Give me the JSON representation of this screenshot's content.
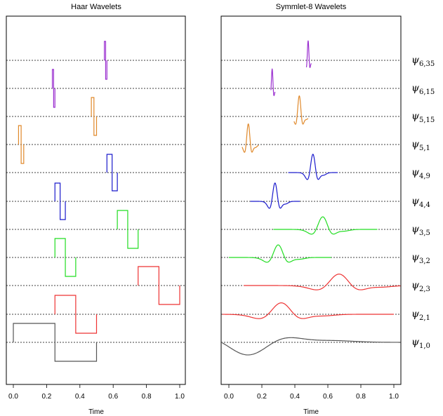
{
  "chart_data": [
    {
      "type": "line",
      "title": "Haar Wavelets",
      "xlabel": "Time",
      "xlim": [
        0.0,
        1.0
      ],
      "x_ticks": [
        "0.0",
        "0.2",
        "0.4",
        "0.6",
        "0.8",
        "1.0"
      ],
      "series": [
        {
          "level": [
            6,
            35
          ],
          "color": "#9b30d0",
          "support": [
            0.5469,
            0.5625
          ]
        },
        {
          "level": [
            6,
            15
          ],
          "color": "#9b30d0",
          "support": [
            0.2344,
            0.25
          ]
        },
        {
          "level": [
            5,
            15
          ],
          "color": "#e0892b",
          "support": [
            0.4688,
            0.5
          ]
        },
        {
          "level": [
            5,
            1
          ],
          "color": "#e0892b",
          "support": [
            0.0313,
            0.0625
          ]
        },
        {
          "level": [
            4,
            9
          ],
          "color": "#1a1acc",
          "support": [
            0.5625,
            0.625
          ]
        },
        {
          "level": [
            4,
            4
          ],
          "color": "#1a1acc",
          "support": [
            0.25,
            0.3125
          ]
        },
        {
          "level": [
            3,
            5
          ],
          "color": "#22dd22",
          "support": [
            0.625,
            0.75
          ]
        },
        {
          "level": [
            3,
            2
          ],
          "color": "#22dd22",
          "support": [
            0.25,
            0.375
          ]
        },
        {
          "level": [
            2,
            3
          ],
          "color": "#ee3333",
          "support": [
            0.75,
            1.0
          ]
        },
        {
          "level": [
            2,
            1
          ],
          "color": "#ee3333",
          "support": [
            0.25,
            0.5
          ]
        },
        {
          "level": [
            1,
            0
          ],
          "color": "#555555",
          "support": [
            0.0,
            0.5
          ]
        }
      ]
    },
    {
      "type": "line",
      "title": "Symmlet-8 Wavelets",
      "xlabel": "Time",
      "xlim": [
        -0.04,
        1.04
      ],
      "x_ticks": [
        "0.0",
        "0.2",
        "0.4",
        "0.6",
        "0.8",
        "1.0"
      ],
      "series": [
        {
          "level": [
            6,
            35
          ],
          "color": "#9b30d0",
          "center": 0.484,
          "scale": 0.0085,
          "amp": 0.85,
          "support": [
            0.47,
            0.5
          ]
        },
        {
          "level": [
            6,
            15
          ],
          "color": "#9b30d0",
          "center": 0.266,
          "scale": 0.0085,
          "amp": 0.85,
          "support": [
            0.255,
            0.28
          ]
        },
        {
          "level": [
            5,
            15
          ],
          "color": "#e0892b",
          "center": 0.434,
          "scale": 0.017,
          "amp": 0.9,
          "support": [
            0.395,
            0.48
          ]
        },
        {
          "level": [
            5,
            1
          ],
          "color": "#e0892b",
          "center": 0.125,
          "scale": 0.017,
          "amp": 0.9,
          "support": [
            0.08,
            0.18
          ]
        },
        {
          "level": [
            4,
            9
          ],
          "color": "#1a1acc",
          "center": 0.52,
          "scale": 0.025,
          "amp": 0.8,
          "support": [
            0.36,
            0.66
          ]
        },
        {
          "level": [
            4,
            4
          ],
          "color": "#1a1acc",
          "center": 0.29,
          "scale": 0.025,
          "amp": 0.8,
          "support": [
            0.13,
            0.43
          ]
        },
        {
          "level": [
            3,
            5
          ],
          "color": "#22dd22",
          "center": 0.59,
          "scale": 0.05,
          "amp": 0.55,
          "support": [
            0.27,
            0.9
          ]
        },
        {
          "level": [
            3,
            2
          ],
          "color": "#22dd22",
          "center": 0.32,
          "scale": 0.05,
          "amp": 0.55,
          "support": [
            0.0,
            0.62
          ]
        },
        {
          "level": [
            2,
            3
          ],
          "color": "#ee3333",
          "center": 0.71,
          "scale": 0.1,
          "amp": 0.5,
          "support": [
            0.09,
            1.04
          ]
        },
        {
          "level": [
            2,
            1
          ],
          "color": "#ee3333",
          "center": 0.36,
          "scale": 0.1,
          "amp": 0.5,
          "support": [
            -0.04,
            1.0
          ]
        },
        {
          "level": [
            1,
            0
          ],
          "color": "#555555",
          "center": 0.2,
          "scale": 0.2,
          "amp": 0.55,
          "support": [
            -0.04,
            1.04
          ]
        }
      ]
    }
  ],
  "row_labels": [
    {
      "symbol": "ψ",
      "sub": "6,35"
    },
    {
      "symbol": "ψ",
      "sub": "6,15"
    },
    {
      "symbol": "ψ",
      "sub": "5,15"
    },
    {
      "symbol": "ψ",
      "sub": "5,1"
    },
    {
      "symbol": "ψ",
      "sub": "4,9"
    },
    {
      "symbol": "ψ",
      "sub": "4,4"
    },
    {
      "symbol": "ψ",
      "sub": "3,5"
    },
    {
      "symbol": "ψ",
      "sub": "3,2"
    },
    {
      "symbol": "ψ",
      "sub": "2,3"
    },
    {
      "symbol": "ψ",
      "sub": "2,1"
    },
    {
      "symbol": "ψ",
      "sub": "1,0"
    }
  ]
}
